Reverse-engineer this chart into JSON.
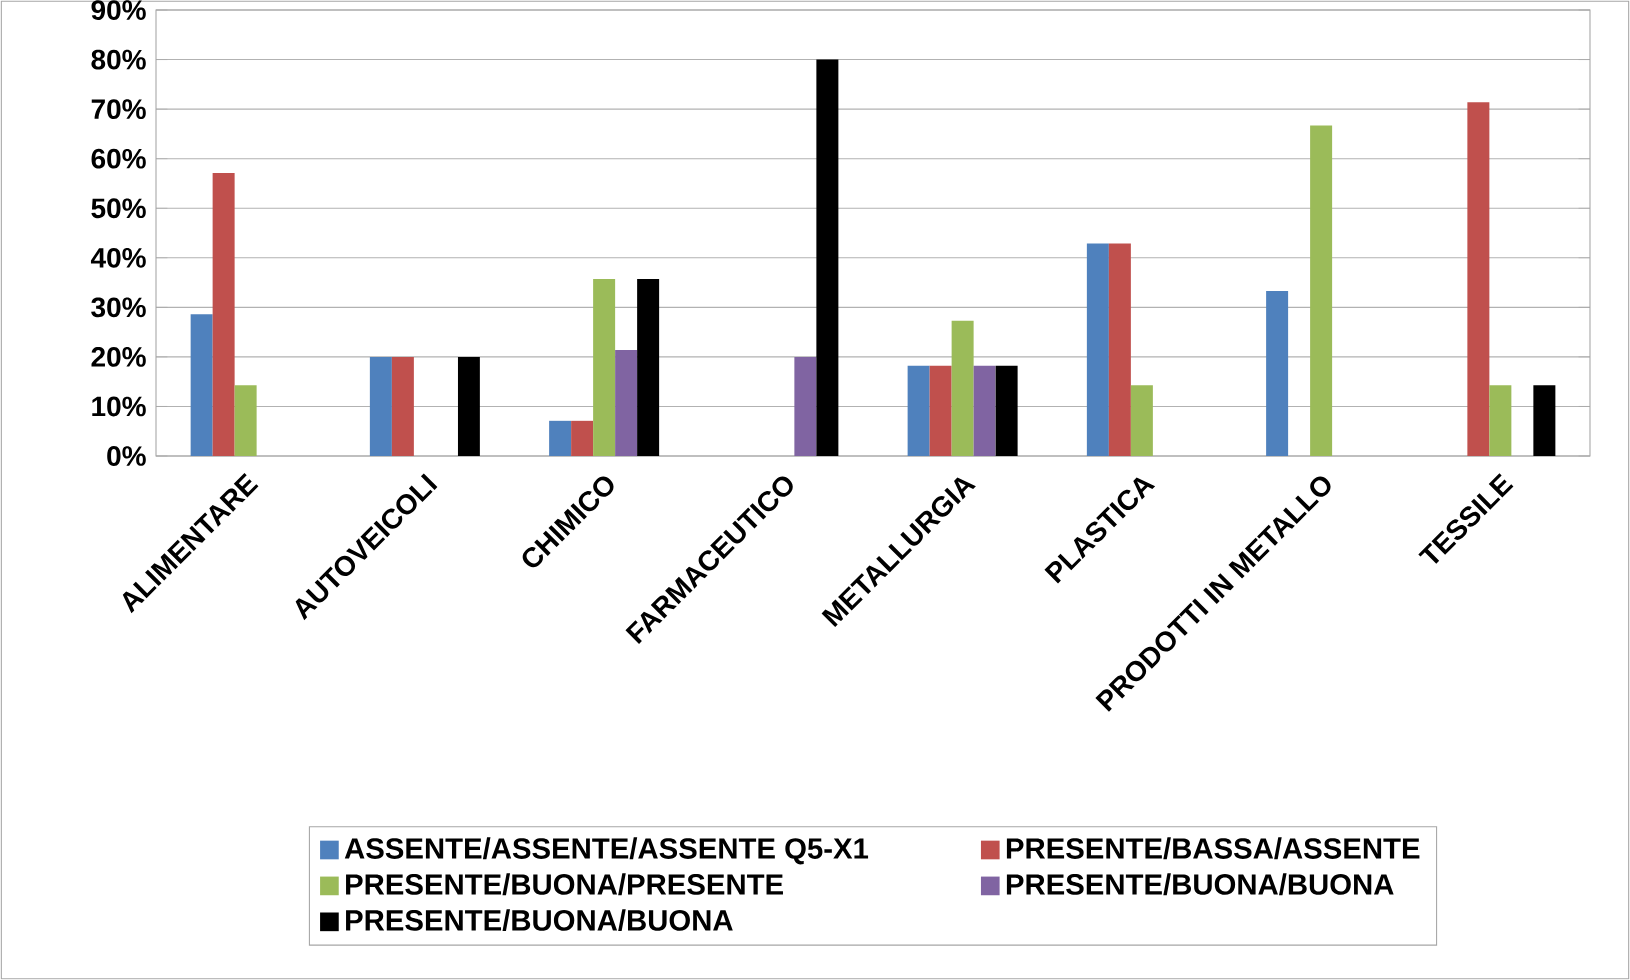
{
  "chart_data": {
    "type": "bar",
    "categories": [
      "ALIMENTARE",
      "AUTOVEICOLI",
      "CHIMICO",
      "FARMACEUTICO",
      "METALLURGIA",
      "PLASTICA",
      "PRODOTTI IN METALLO",
      "TESSILE"
    ],
    "series": [
      {
        "name": "ASSENTE/ASSENTE/ASSENTE Q5-X1",
        "color": "#4f81bd",
        "values": [
          28.6,
          20,
          7.1,
          null,
          18.2,
          42.9,
          33.3,
          null
        ]
      },
      {
        "name": "PRESENTE/BASSA/ASSENTE",
        "color": "#c0504d",
        "values": [
          57.1,
          20,
          7.1,
          null,
          18.2,
          42.9,
          null,
          71.4
        ]
      },
      {
        "name": "PRESENTE/BUONA/PRESENTE",
        "color": "#9bbb59",
        "values": [
          14.3,
          null,
          35.7,
          null,
          27.3,
          14.3,
          66.7,
          14.3
        ]
      },
      {
        "name": "PRESENTE/BUONA/BUONA",
        "color": "#8064a2",
        "values": [
          null,
          null,
          21.4,
          20,
          18.2,
          null,
          null,
          null
        ]
      },
      {
        "name": "PRESENTE/BUONA/BUONA",
        "color": "#000000",
        "values": [
          null,
          20,
          35.7,
          80,
          18.2,
          null,
          null,
          14.3
        ]
      }
    ],
    "ylim": [
      0,
      90
    ],
    "yticks": [
      {
        "value": 0,
        "label": "0%"
      },
      {
        "value": 10,
        "label": "10%"
      },
      {
        "value": 20,
        "label": "20%"
      },
      {
        "value": 30,
        "label": "30%"
      },
      {
        "value": 40,
        "label": "40%"
      },
      {
        "value": 50,
        "label": "50%"
      },
      {
        "value": 60,
        "label": "60%"
      },
      {
        "value": 70,
        "label": "70%"
      },
      {
        "value": 80,
        "label": "80%"
      },
      {
        "value": 90,
        "label": "90%"
      }
    ],
    "grid": "y",
    "legend": "bottom"
  }
}
